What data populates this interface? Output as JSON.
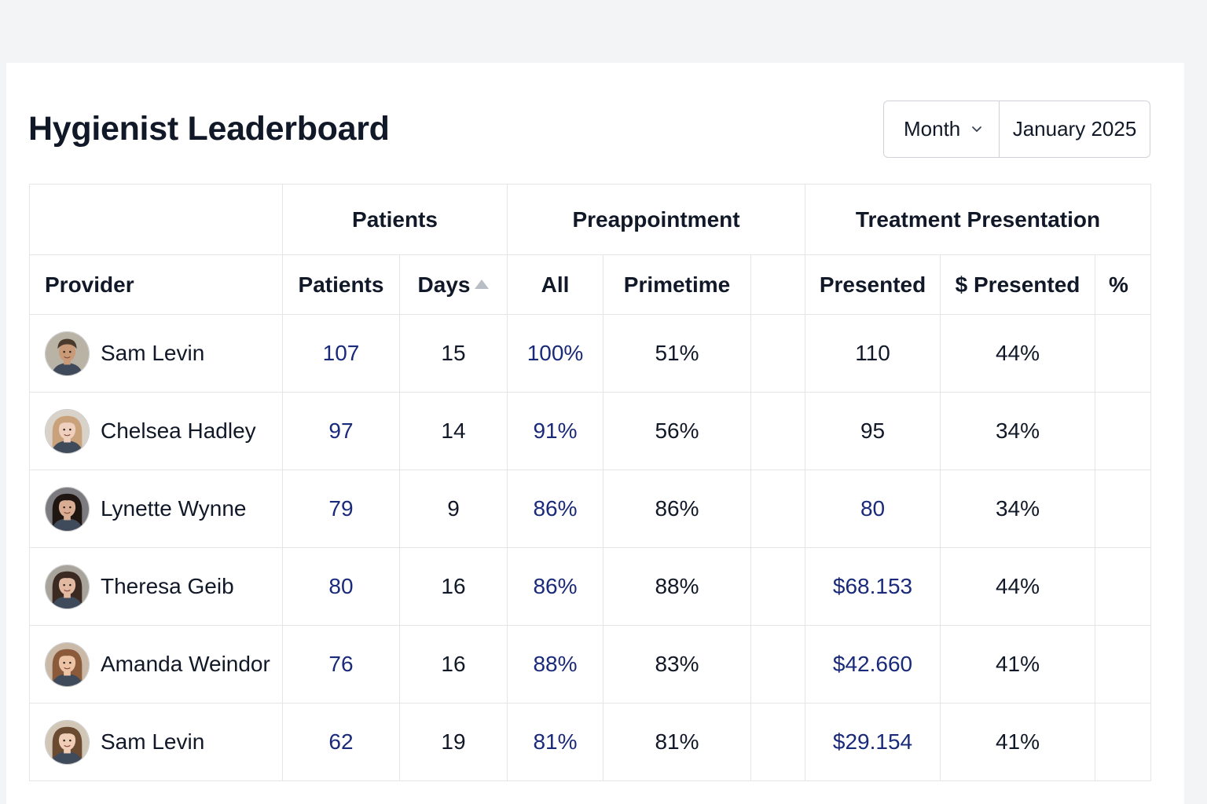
{
  "header": {
    "title": "Hygienist Leaderboard",
    "period_type": "Month",
    "period_value": "January 2025"
  },
  "table": {
    "groups": {
      "patients": "Patients",
      "preappointment": "Preappointment",
      "treatment": "Treatment Presentation"
    },
    "columns": {
      "provider": "Provider",
      "patients": "Patients",
      "days": "Days",
      "all": "All",
      "primetime": "Primetime",
      "presented": "Presented",
      "dollar_presented": "$ Presented",
      "percent": "%"
    },
    "sort": {
      "column": "days",
      "direction": "ascending"
    },
    "rows": [
      {
        "name": "Sam Levin",
        "patients": "107",
        "days": "15",
        "all": "100%",
        "primetime": "51%",
        "presented": "110",
        "dollar_presented": "44%",
        "percent": "",
        "presented_link": false,
        "avatar": {
          "skin": "#c99a78",
          "hair": "#4a3a2c",
          "bg": "#b9b3a6",
          "style": "short"
        }
      },
      {
        "name": "Chelsea Hadley",
        "patients": "97",
        "days": "14",
        "all": "91%",
        "primetime": "56%",
        "presented": "95",
        "dollar_presented": "34%",
        "percent": "",
        "presented_link": false,
        "avatar": {
          "skin": "#efd0bf",
          "hair": "#c9a17a",
          "bg": "#d8d2c9",
          "style": "long"
        }
      },
      {
        "name": "Lynette Wynne",
        "patients": "79",
        "days": "9",
        "all": "86%",
        "primetime": "86%",
        "presented": "80",
        "dollar_presented": "34%",
        "percent": "",
        "presented_link": true,
        "avatar": {
          "skin": "#d9ad93",
          "hair": "#1f1612",
          "bg": "#7c7c80",
          "style": "long"
        }
      },
      {
        "name": "Theresa Geib",
        "patients": "80",
        "days": "16",
        "all": "86%",
        "primetime": "88%",
        "presented": "$68.153",
        "dollar_presented": "44%",
        "percent": "",
        "presented_link": true,
        "avatar": {
          "skin": "#e2b9a1",
          "hair": "#3a2a22",
          "bg": "#a8a49c",
          "style": "long"
        }
      },
      {
        "name": "Amanda Weindor",
        "patients": "76",
        "days": "16",
        "all": "88%",
        "primetime": "83%",
        "presented": "$42.660",
        "dollar_presented": "41%",
        "percent": "",
        "presented_link": true,
        "avatar": {
          "skin": "#edc3a6",
          "hair": "#8a5a3a",
          "bg": "#c9b9a6",
          "style": "long"
        }
      },
      {
        "name": "Sam Levin",
        "patients": "62",
        "days": "19",
        "all": "81%",
        "primetime": "81%",
        "presented": "$29.154",
        "dollar_presented": "41%",
        "percent": "",
        "presented_link": true,
        "avatar": {
          "skin": "#efcdb6",
          "hair": "#6b4a32",
          "bg": "#d2c7b6",
          "style": "long"
        }
      }
    ]
  },
  "colors": {
    "link": "#1a2a7a",
    "text": "#111827",
    "border": "#e3e5e9",
    "page_bg": "#f3f4f6",
    "sort_icon": "#b9bdc4"
  },
  "icons": {
    "period_dropdown": "chevron-down-icon",
    "sort": "sort-ascending-icon",
    "avatar": "person-avatar-icon"
  }
}
